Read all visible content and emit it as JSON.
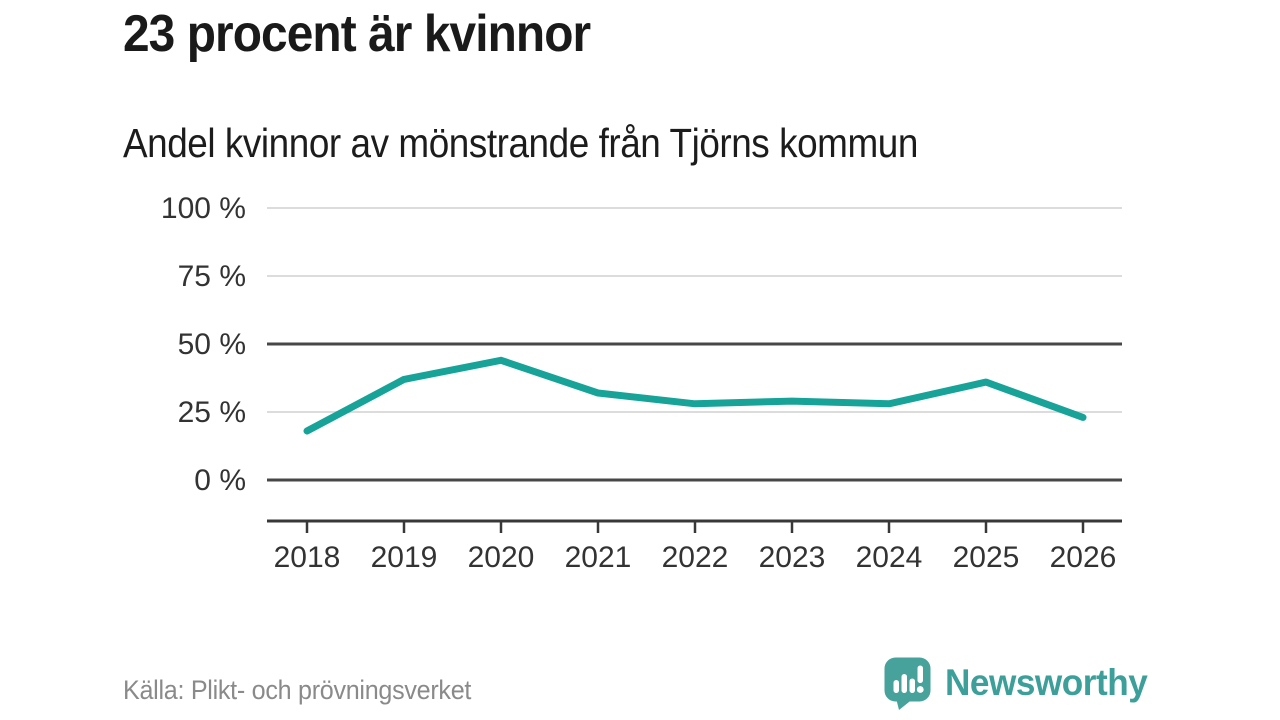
{
  "header": {
    "title": "23 procent är kvinnor",
    "subtitle": "Andel kvinnor av mönstrande från Tjörns kommun"
  },
  "chart_data": {
    "type": "line",
    "categories": [
      "2018",
      "2019",
      "2020",
      "2021",
      "2022",
      "2023",
      "2024",
      "2025",
      "2026"
    ],
    "series": [
      {
        "name": "Andel kvinnor av mönstrande",
        "values": [
          18,
          37,
          44,
          32,
          28,
          29,
          28,
          36,
          23
        ]
      }
    ],
    "unit": "%",
    "title": "23 procent är kvinnor",
    "subtitle": "Andel kvinnor av mönstrande från Tjörns kommun",
    "xlabel": "",
    "ylabel": "",
    "ylim": [
      0,
      100
    ],
    "y_ticks": [
      100,
      75,
      50,
      25,
      0
    ],
    "y_tick_labels": [
      "100 %",
      "75 %",
      "50 %",
      "25 %",
      "0 %"
    ],
    "emphasized_gridlines": [
      50,
      0
    ],
    "grid": true,
    "legend_position": "none",
    "line_color": "#17a398"
  },
  "colors": {
    "accent_teal": "#17a398",
    "brand_teal": "#3d9f99",
    "grid_light": "#dcdcdc",
    "grid_dark": "#474747",
    "axis": "#383838",
    "tick_text": "#333333",
    "title_text": "#1a1a1a",
    "source_text": "#8a8a8a"
  },
  "footer": {
    "source": "Källa: Plikt- och prövningsverket",
    "brand": "Newsworthy"
  }
}
